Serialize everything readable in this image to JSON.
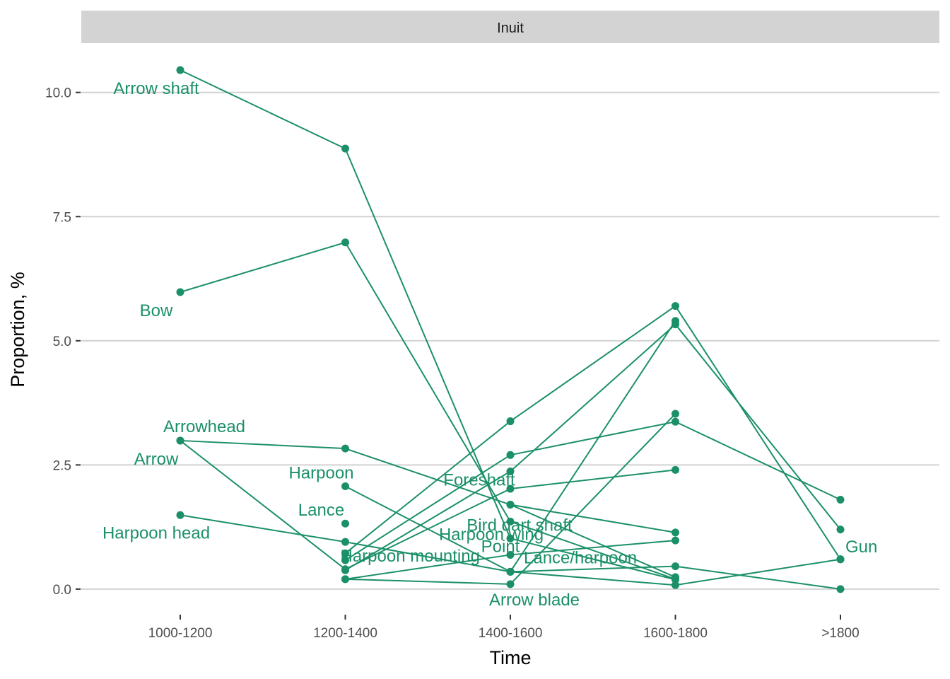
{
  "chart_data": {
    "type": "line",
    "facet": "Inuit",
    "xlabel": "Time",
    "ylabel": "Proportion, %",
    "categories": [
      "1000-1200",
      "1200-1400",
      "1400-1600",
      "1600-1800",
      ">1800"
    ],
    "y_ticks": [
      "0.0",
      "2.5",
      "5.0",
      "7.5",
      "10.0"
    ],
    "ylim": [
      -0.5,
      10.95
    ],
    "grid": "horizontal major",
    "legend": "none",
    "color": "#1b9068",
    "series": [
      {
        "name": "Arrow shaft",
        "label_at": "1000-1200",
        "values": [
          10.45,
          8.87,
          1.02,
          0.19,
          null
        ]
      },
      {
        "name": "Bow",
        "label_at": "1000-1200",
        "values": [
          5.98,
          6.98,
          1.36,
          0.2,
          null
        ]
      },
      {
        "name": "Arrowhead",
        "label_at": "1000-1200",
        "values": [
          2.99,
          2.83,
          1.7,
          1.14,
          null
        ]
      },
      {
        "name": "Arrow",
        "label_at": "1000-1200",
        "values": [
          2.99,
          0.4,
          2.02,
          2.4,
          null
        ]
      },
      {
        "name": "Harpoon head",
        "label_at": "1000-1200",
        "values": [
          1.49,
          0.95,
          0.35,
          0.46,
          0.0
        ]
      },
      {
        "name": "Harpoon",
        "label_at": "1200-1400",
        "values": [
          null,
          2.07,
          0.35,
          0.08,
          0.6
        ]
      },
      {
        "name": "Lance",
        "label_at": "1200-1400",
        "values": [
          null,
          1.32,
          null,
          null,
          null
        ]
      },
      {
        "name": "Harpoon mounting",
        "label_at": "1200-1400",
        "values": [
          null,
          0.2,
          0.69,
          0.98,
          null
        ]
      },
      {
        "name": "Foreshaft",
        "label_at": "1400-1600",
        "values": [
          null,
          0.58,
          2.7,
          3.37,
          1.8
        ]
      },
      {
        "name": "Harpoon wing",
        "label_at": "1400-1600",
        "values": [
          null,
          0.72,
          3.38,
          5.7,
          0.6
        ]
      },
      {
        "name": "Point",
        "label_at": "1400-1600",
        "values": [
          null,
          0.38,
          2.37,
          5.33,
          1.2
        ]
      },
      {
        "name": "Bird dart shaft",
        "label_at": "1400-1600",
        "values": [
          null,
          null,
          1.7,
          0.24,
          null
        ]
      },
      {
        "name": "Lance/harpoon",
        "label_at": "1400-1600",
        "values": [
          null,
          null,
          0.35,
          5.4,
          null
        ]
      },
      {
        "name": "Arrow blade",
        "label_at": "1400-1600",
        "values": [
          null,
          0.2,
          0.1,
          3.53,
          null
        ]
      },
      {
        "name": "Gun",
        "label_at": ">1800",
        "values": [
          null,
          null,
          null,
          null,
          0.6
        ]
      }
    ]
  }
}
